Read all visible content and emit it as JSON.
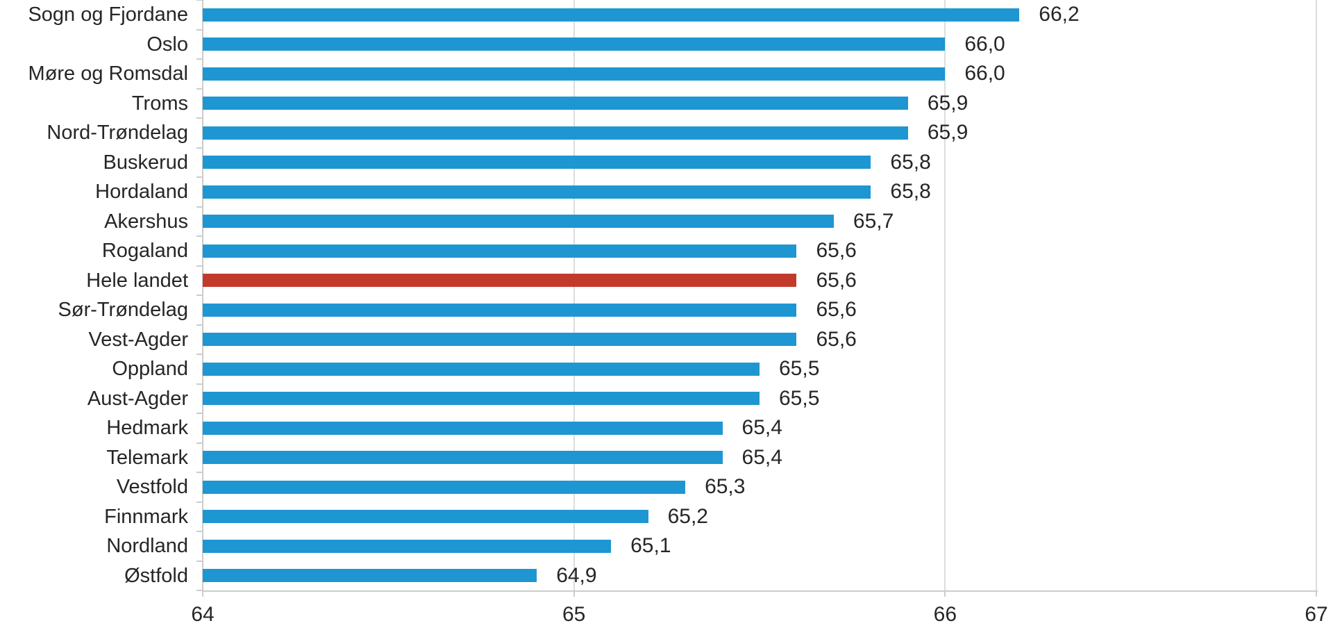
{
  "chart_data": {
    "type": "bar",
    "orientation": "horizontal",
    "title": "",
    "xlabel": "",
    "ylabel": "",
    "categories": [
      "Sogn og Fjordane",
      "Oslo",
      "Møre og Romsdal",
      "Troms",
      "Nord-Trøndelag",
      "Buskerud",
      "Hordaland",
      "Akershus",
      "Rogaland",
      "Hele landet",
      "Sør-Trøndelag",
      "Vest-Agder",
      "Oppland",
      "Aust-Agder",
      "Hedmark",
      "Telemark",
      "Vestfold",
      "Finnmark",
      "Nordland",
      "Østfold"
    ],
    "values": [
      66.2,
      66.0,
      66.0,
      65.9,
      65.9,
      65.8,
      65.8,
      65.7,
      65.6,
      65.6,
      65.6,
      65.6,
      65.5,
      65.5,
      65.4,
      65.4,
      65.3,
      65.2,
      65.1,
      64.9
    ],
    "value_labels": [
      "66,2",
      "66,0",
      "66,0",
      "65,9",
      "65,9",
      "65,8",
      "65,8",
      "65,7",
      "65,6",
      "65,6",
      "65,6",
      "65,6",
      "65,5",
      "65,5",
      "65,4",
      "65,4",
      "65,3",
      "65,2",
      "65,1",
      "64,9"
    ],
    "decimal_separator": ",",
    "highlighted_category": "Hele landet",
    "highlight_index": 9,
    "xlim": [
      64,
      67
    ],
    "x_tick_values": [
      64,
      65,
      66,
      67
    ],
    "x_tick_labels": [
      "64",
      "65",
      "66",
      "67"
    ],
    "gridlines": "vertical",
    "legend": "none",
    "colors": {
      "bar_blue": "#1e96d2",
      "bar_red": "#c23a2b",
      "label_text": "#262626",
      "gridline": "#dcdcdc",
      "axis_line": "#cccccc",
      "tick": "#cccccc",
      "background": "#ffffff"
    }
  }
}
